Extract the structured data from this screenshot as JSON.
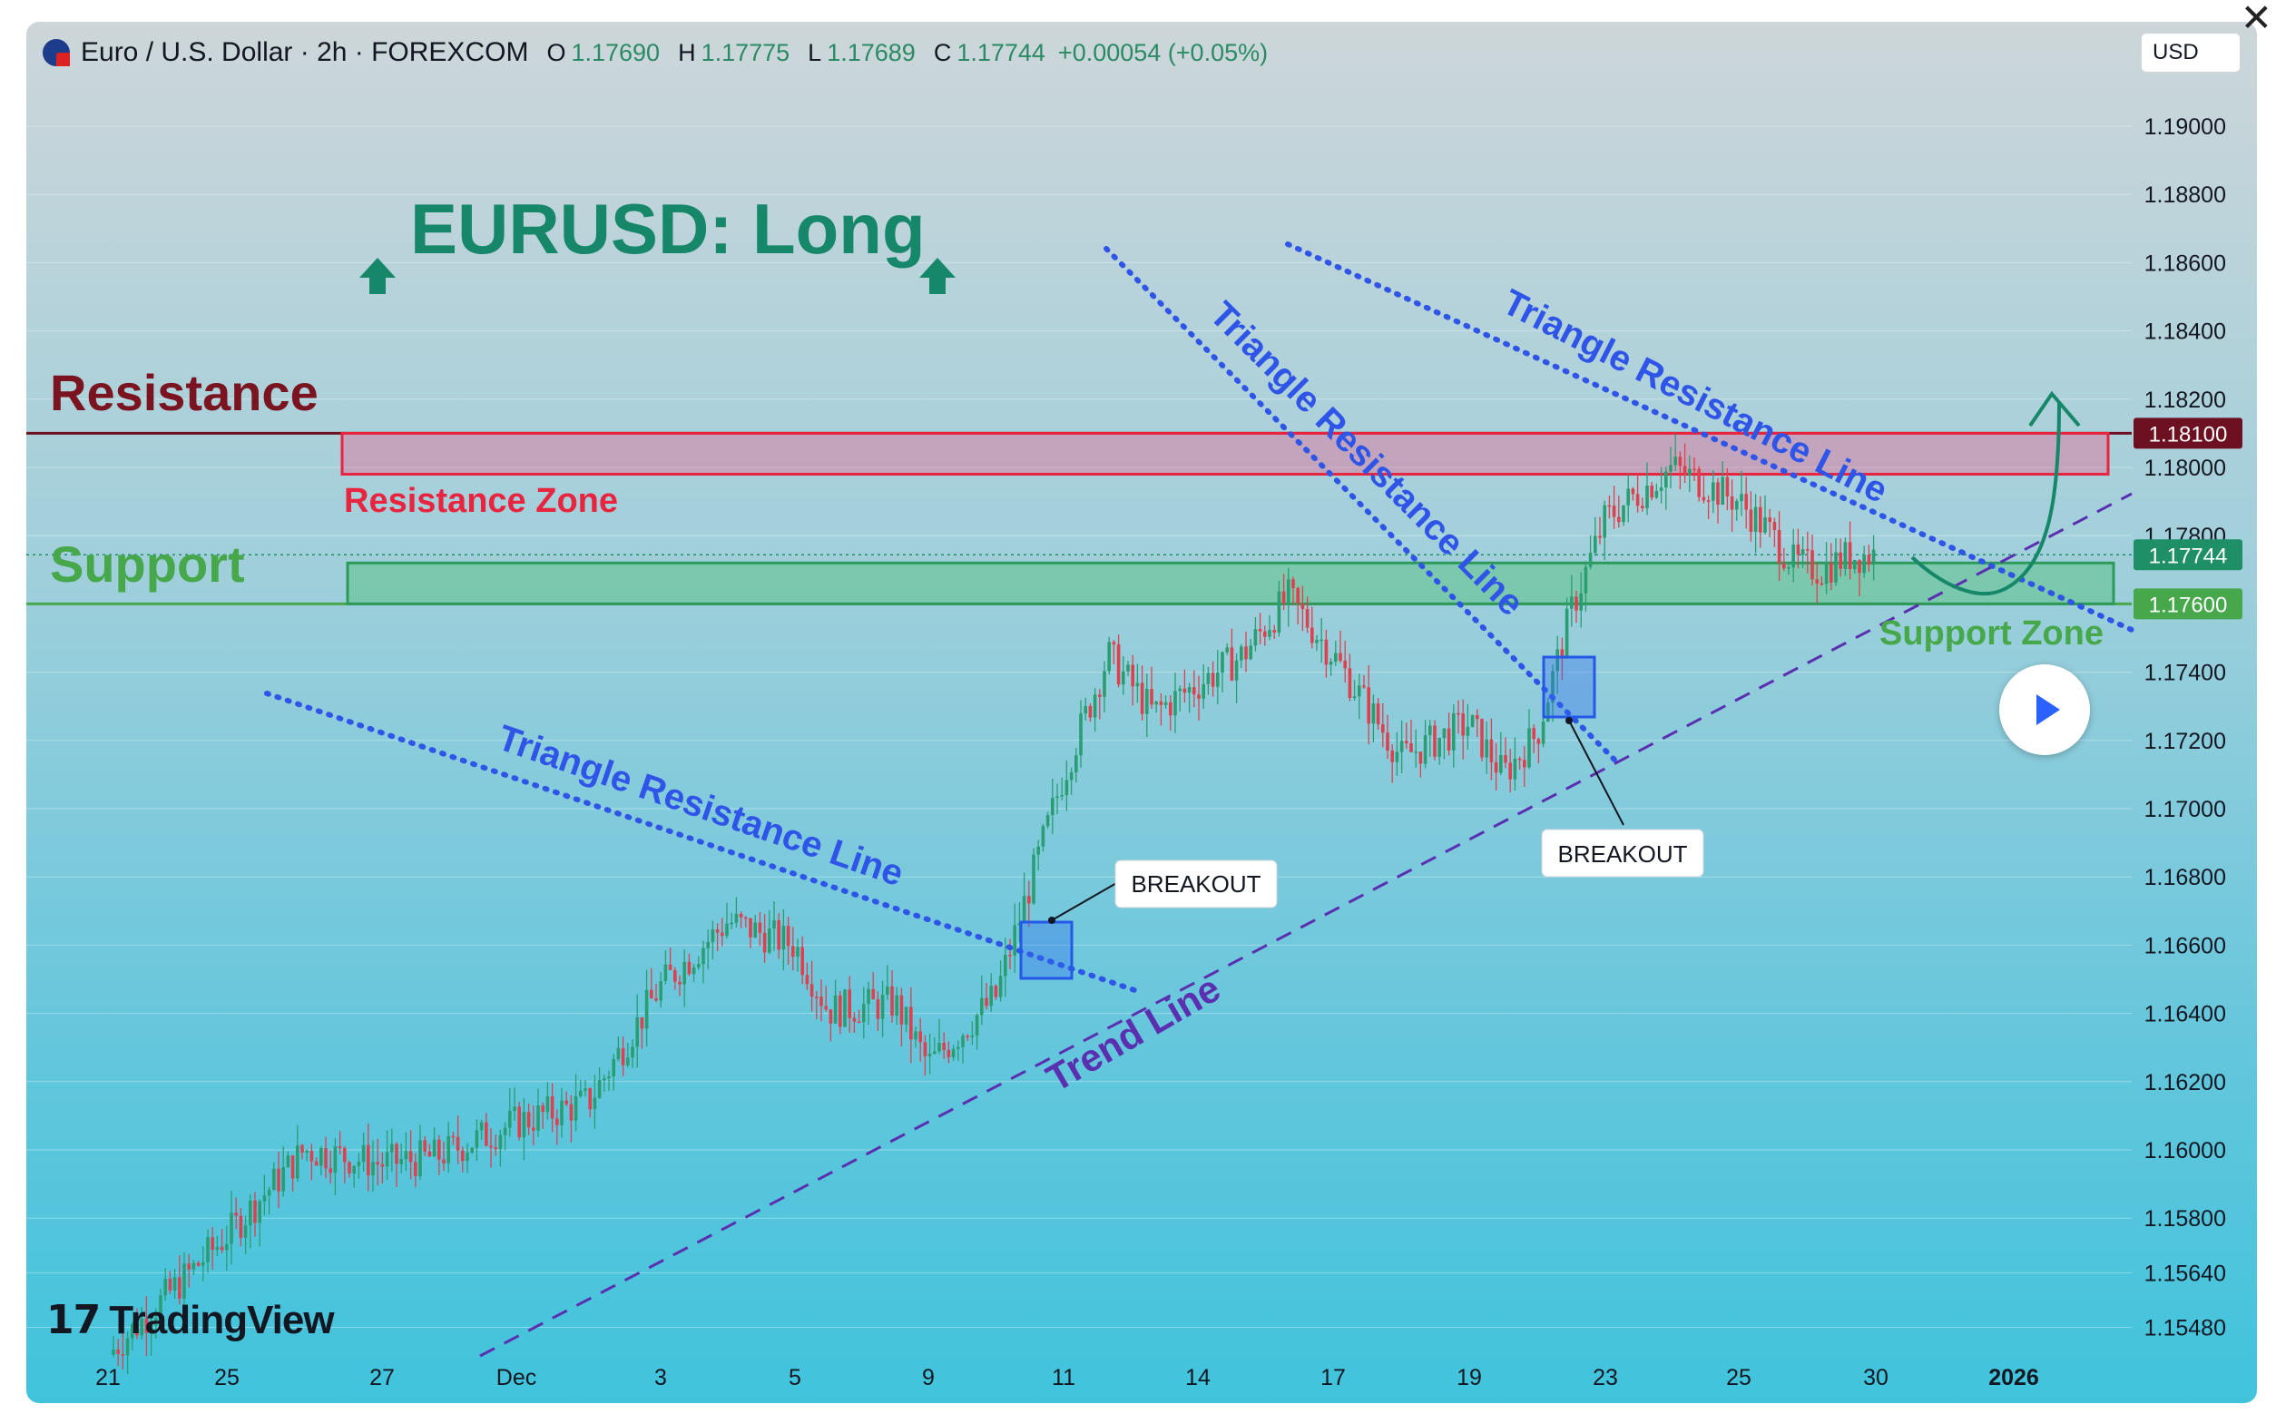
{
  "header": {
    "symbol": "Euro / U.S. Dollar · 2h · FOREXCOM",
    "o_label": "O",
    "o_value": "1.17690",
    "h_label": "H",
    "h_value": "1.17775",
    "l_label": "L",
    "l_value": "1.17689",
    "c_label": "C",
    "c_value": "1.17744",
    "change": "+0.00054 (+0.05%)"
  },
  "currency_button": "USD",
  "close_glyph": "✕",
  "logo_text": "TradingView",
  "colors": {
    "up": "#2a9d73",
    "down": "#e0404e",
    "resistance": "#7a1420",
    "support": "#4caf50",
    "blue_line": "#2f55e8",
    "trend_line": "#5a2fb0",
    "headline": "#17876a"
  },
  "chart_data": {
    "type": "candlestick",
    "title": "EURUSD: Long",
    "timeframe": "2h",
    "ylim": [
      1.154,
      1.1915
    ],
    "y_ticks": [
      "1.19000",
      "1.18800",
      "1.18600",
      "1.18400",
      "1.18200",
      "1.18000",
      "1.17800",
      "1.17400",
      "1.17200",
      "1.17000",
      "1.16800",
      "1.16600",
      "1.16400",
      "1.16200",
      "1.16000",
      "1.15800",
      "1.15640",
      "1.15480"
    ],
    "x_ticks": [
      "21",
      "25",
      "27",
      "Dec",
      "3",
      "5",
      "9",
      "11",
      "14",
      "17",
      "19",
      "23",
      "25",
      "30",
      "2026"
    ],
    "price_labels": [
      {
        "value": 1.181,
        "text": "1.18100",
        "color": "#6d1021"
      },
      {
        "value": 1.17744,
        "text": "1.17744",
        "color": "#1f8f68"
      },
      {
        "value": 1.176,
        "text": "1.17600",
        "color": "#47a84b"
      }
    ],
    "price_path": [
      {
        "x": "Nov 20",
        "price": 1.154
      },
      {
        "x": "Nov 24",
        "price": 1.1575
      },
      {
        "x": "Nov 25",
        "price": 1.16
      },
      {
        "x": "Nov 26",
        "price": 1.1596
      },
      {
        "x": "Nov 28",
        "price": 1.1598
      },
      {
        "x": "Dec 1",
        "price": 1.1608
      },
      {
        "x": "Dec 2",
        "price": 1.1614
      },
      {
        "x": "Dec 3",
        "price": 1.1648
      },
      {
        "x": "Dec 4",
        "price": 1.1667
      },
      {
        "x": "Dec 5",
        "price": 1.166
      },
      {
        "x": "Dec 6",
        "price": 1.1641
      },
      {
        "x": "Dec 8",
        "price": 1.1643
      },
      {
        "x": "Dec 9",
        "price": 1.1625
      },
      {
        "x": "Dec 10",
        "price": 1.1645
      },
      {
        "x": "Dec 11",
        "price": 1.171
      },
      {
        "x": "Dec 12",
        "price": 1.1745
      },
      {
        "x": "Dec 13",
        "price": 1.1728
      },
      {
        "x": "Dec 15",
        "price": 1.1745
      },
      {
        "x": "Dec 16",
        "price": 1.1762
      },
      {
        "x": "Dec 17",
        "price": 1.1745
      },
      {
        "x": "Dec 18",
        "price": 1.1715
      },
      {
        "x": "Dec 19",
        "price": 1.1725
      },
      {
        "x": "Dec 20",
        "price": 1.171
      },
      {
        "x": "Dec 21",
        "price": 1.1722
      },
      {
        "x": "Dec 22",
        "price": 1.1758
      },
      {
        "x": "Dec 23",
        "price": 1.1785
      },
      {
        "x": "Dec 24",
        "price": 1.18
      },
      {
        "x": "Dec 25",
        "price": 1.179
      },
      {
        "x": "Dec 26",
        "price": 1.1782
      },
      {
        "x": "Dec 27",
        "price": 1.1772
      },
      {
        "x": "Dec 28",
        "price": 1.177
      },
      {
        "x": "Dec 29",
        "price": 1.1774
      },
      {
        "x": "Dec 30",
        "price": 1.17744
      }
    ],
    "zones": [
      {
        "name": "Resistance Zone",
        "from": 1.1798,
        "to": 1.181,
        "label": "Resistance Zone"
      },
      {
        "name": "Support Zone",
        "from": 1.176,
        "to": 1.1772,
        "label": "Support Zone"
      }
    ],
    "annotations": {
      "headline": "EURUSD: Long",
      "resistance": "Resistance",
      "support": "Support",
      "resistance_zone": "Resistance Zone",
      "support_zone": "Support Zone",
      "triangle_1": "Triangle Resistance Line",
      "triangle_2": "Triangle Resistance Line",
      "triangle_3": "Triangle Resistance Line",
      "trend_line": "Trend Line",
      "breakout_1": "BREAKOUT",
      "breakout_2": "BREAKOUT"
    },
    "grid": true,
    "legend": "none"
  }
}
